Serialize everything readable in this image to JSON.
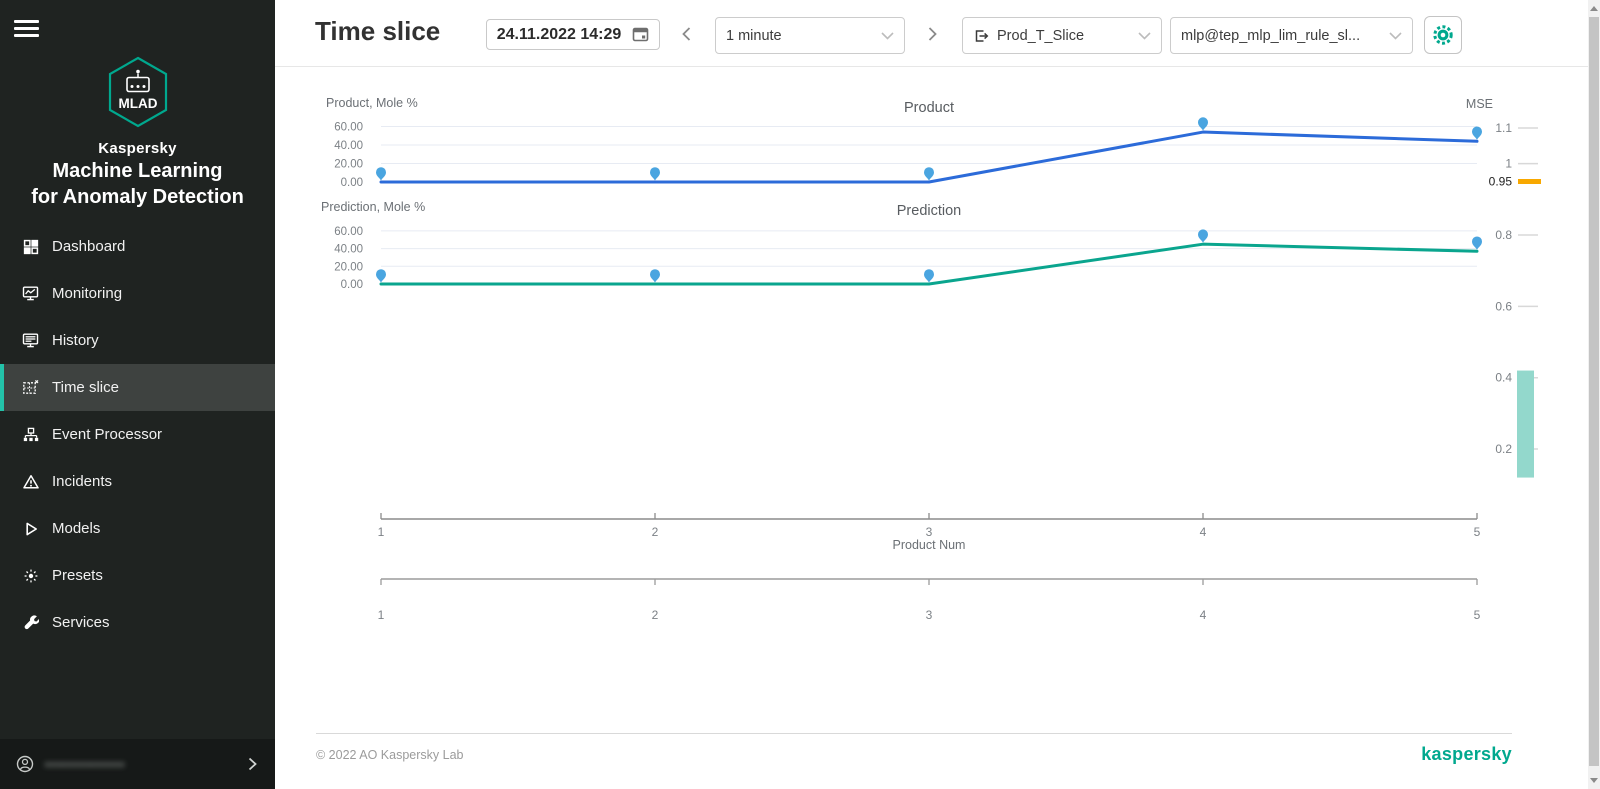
{
  "theme": {
    "accent": "#00a88e",
    "sidebar_active_accent": "#23c2a9",
    "sidebar_bg": "#1f2321"
  },
  "sidebar": {
    "logo": {
      "badge": "MLAD",
      "brand": "Kaspersky",
      "title_line1": "Machine Learning",
      "title_line2": "for Anomaly Detection"
    },
    "items": [
      {
        "label": "Dashboard",
        "icon": "dashboard-icon",
        "active": false
      },
      {
        "label": "Monitoring",
        "icon": "monitoring-icon",
        "active": false
      },
      {
        "label": "History",
        "icon": "history-icon",
        "active": false
      },
      {
        "label": "Time slice",
        "icon": "time-slice-icon",
        "active": true
      },
      {
        "label": "Event Processor",
        "icon": "event-processor-icon",
        "active": false
      },
      {
        "label": "Incidents",
        "icon": "incidents-icon",
        "active": false
      },
      {
        "label": "Models",
        "icon": "models-icon",
        "active": false
      },
      {
        "label": "Presets",
        "icon": "presets-icon",
        "active": false
      },
      {
        "label": "Services",
        "icon": "services-icon",
        "active": false
      }
    ],
    "user": {
      "email_masked": "••••••••••••••"
    }
  },
  "header": {
    "title": "Time slice",
    "datetime_value": "24.11.2022  14:29",
    "interval_value": "1 minute",
    "slice_value": "Prod_T_Slice",
    "model_value": "mlp@tep_mlp_lim_rule_sl..."
  },
  "chart_data": [
    {
      "type": "line",
      "title": "Product",
      "ylabel": "Product, Mole %",
      "x": [
        1,
        2,
        3,
        4,
        5
      ],
      "values": [
        0,
        0,
        0,
        54,
        44
      ],
      "yticks": [
        60,
        40,
        20,
        0
      ],
      "ytick_labels": [
        "60.00",
        "40.00",
        "20.00",
        "0.00"
      ],
      "ylim": [
        0,
        66
      ],
      "grid": true,
      "line_color": "#2c6bd9",
      "marker_color": "#4aa5e0"
    },
    {
      "type": "line",
      "title": "Prediction",
      "ylabel": "Prediction, Mole %",
      "x": [
        1,
        2,
        3,
        4,
        5
      ],
      "values": [
        0,
        0,
        0,
        45,
        37
      ],
      "yticks": [
        60,
        40,
        20,
        0
      ],
      "ytick_labels": [
        "60.00",
        "40.00",
        "20.00",
        "0.00"
      ],
      "ylim": [
        0,
        66
      ],
      "grid": true,
      "line_color": "#0aa58e",
      "marker_color": "#4aa5e0"
    },
    {
      "type": "axis",
      "title": "MSE",
      "position": "right",
      "ticks": [
        1.1,
        1,
        0.95,
        0.8,
        0.6,
        0.4,
        0.2
      ],
      "tick_labels": [
        "1.1",
        "1",
        "0.95",
        "0.8",
        "0.6",
        "0.4",
        "0.2"
      ],
      "current_value": 0.95,
      "current_marker_color": "#f8a800",
      "range_bar": {
        "from": 0.12,
        "to": 0.42,
        "color": "#93d8cc"
      }
    }
  ],
  "xaxis": {
    "label": "Product Num",
    "tick_labels": [
      "1",
      "2",
      "3",
      "4",
      "5"
    ]
  },
  "brush_axis": {
    "tick_labels": [
      "1",
      "2",
      "3",
      "4",
      "5"
    ]
  },
  "footer": {
    "copyright": "© 2022 AO Kaspersky Lab",
    "brand": "kaspersky"
  }
}
